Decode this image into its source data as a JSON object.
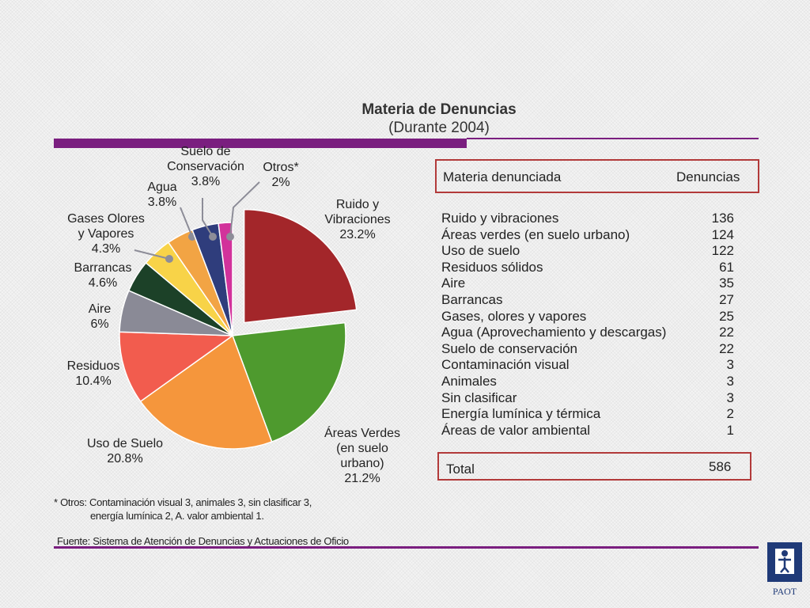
{
  "title": "Materia de Denuncias",
  "subtitle": "(Durante 2004)",
  "chart_data": {
    "type": "pie",
    "title": "Materia de Denuncias",
    "subtitle": "(Durante 2004)",
    "slices": [
      {
        "label_lines": [
          "Ruido y",
          "Vibraciones",
          "23.2%"
        ],
        "value": 23.2,
        "color": "#a3262a",
        "exploded": true
      },
      {
        "label_lines": [
          "Áreas Verdes",
          "(en suelo",
          "urbano)",
          "21.2%"
        ],
        "value": 21.2,
        "color": "#4e9a2e"
      },
      {
        "label_lines": [
          "Uso de Suelo",
          "20.8%"
        ],
        "value": 20.8,
        "color": "#f5963c"
      },
      {
        "label_lines": [
          "Residuos",
          "10.4%"
        ],
        "value": 10.4,
        "color": "#f25c4e"
      },
      {
        "label_lines": [
          "Aire",
          "6%"
        ],
        "value": 6,
        "color": "#8a8a96"
      },
      {
        "label_lines": [
          "Barrancas",
          "4.6%"
        ],
        "value": 4.6,
        "color": "#1c4128"
      },
      {
        "label_lines": [
          "Gases Olores",
          "y Vapores",
          "4.3%"
        ],
        "value": 4.3,
        "color": "#f8d348"
      },
      {
        "label_lines": [
          "Agua",
          "3.8%"
        ],
        "value": 3.8,
        "color": "#f2a444"
      },
      {
        "label_lines": [
          "Suelo de",
          "Conservación",
          "3.8%"
        ],
        "value": 3.8,
        "color": "#2f3d7c"
      },
      {
        "label_lines": [
          "Otros*",
          "2%"
        ],
        "value": 2,
        "color": "#d2329b"
      }
    ]
  },
  "table": {
    "col_label": "Materia denunciada",
    "col_value": "Denuncias",
    "rows": [
      {
        "label": "Ruido y vibraciones",
        "value": "136"
      },
      {
        "label": "Áreas verdes (en suelo urbano)",
        "value": "124"
      },
      {
        "label": "Uso de suelo",
        "value": "122"
      },
      {
        "label": "Residuos sólidos",
        "value": "61"
      },
      {
        "label": "Aire",
        "value": "35"
      },
      {
        "label": "Barrancas",
        "value": "27"
      },
      {
        "label": "Gases, olores y vapores",
        "value": "25"
      },
      {
        "label": "Agua (Aprovechamiento y descargas)",
        "value": "22"
      },
      {
        "label": "Suelo de conservación",
        "value": "22"
      },
      {
        "label": "Contaminación visual",
        "value": "3"
      },
      {
        "label": "Animales",
        "value": "3"
      },
      {
        "label": "Sin clasificar",
        "value": "3"
      },
      {
        "label": "Energía lumínica y térmica",
        "value": "2"
      },
      {
        "label": "Áreas de valor ambiental",
        "value": "1"
      }
    ],
    "total_label": "Total",
    "total_value": "586"
  },
  "footnote_line1": "* Otros: Contaminación visual 3, animales 3, sin clasificar  3,",
  "footnote_line2": "energía lumínica 2, A. valor ambiental 1.",
  "source": "Fuente: Sistema de Atención de Denuncias  y Actuaciones de Oficio",
  "logo_text": "PAOT",
  "colors": {
    "accent": "#7a1e7f",
    "table_border": "#b23a3a",
    "logo_blue": "#1f3a78"
  }
}
